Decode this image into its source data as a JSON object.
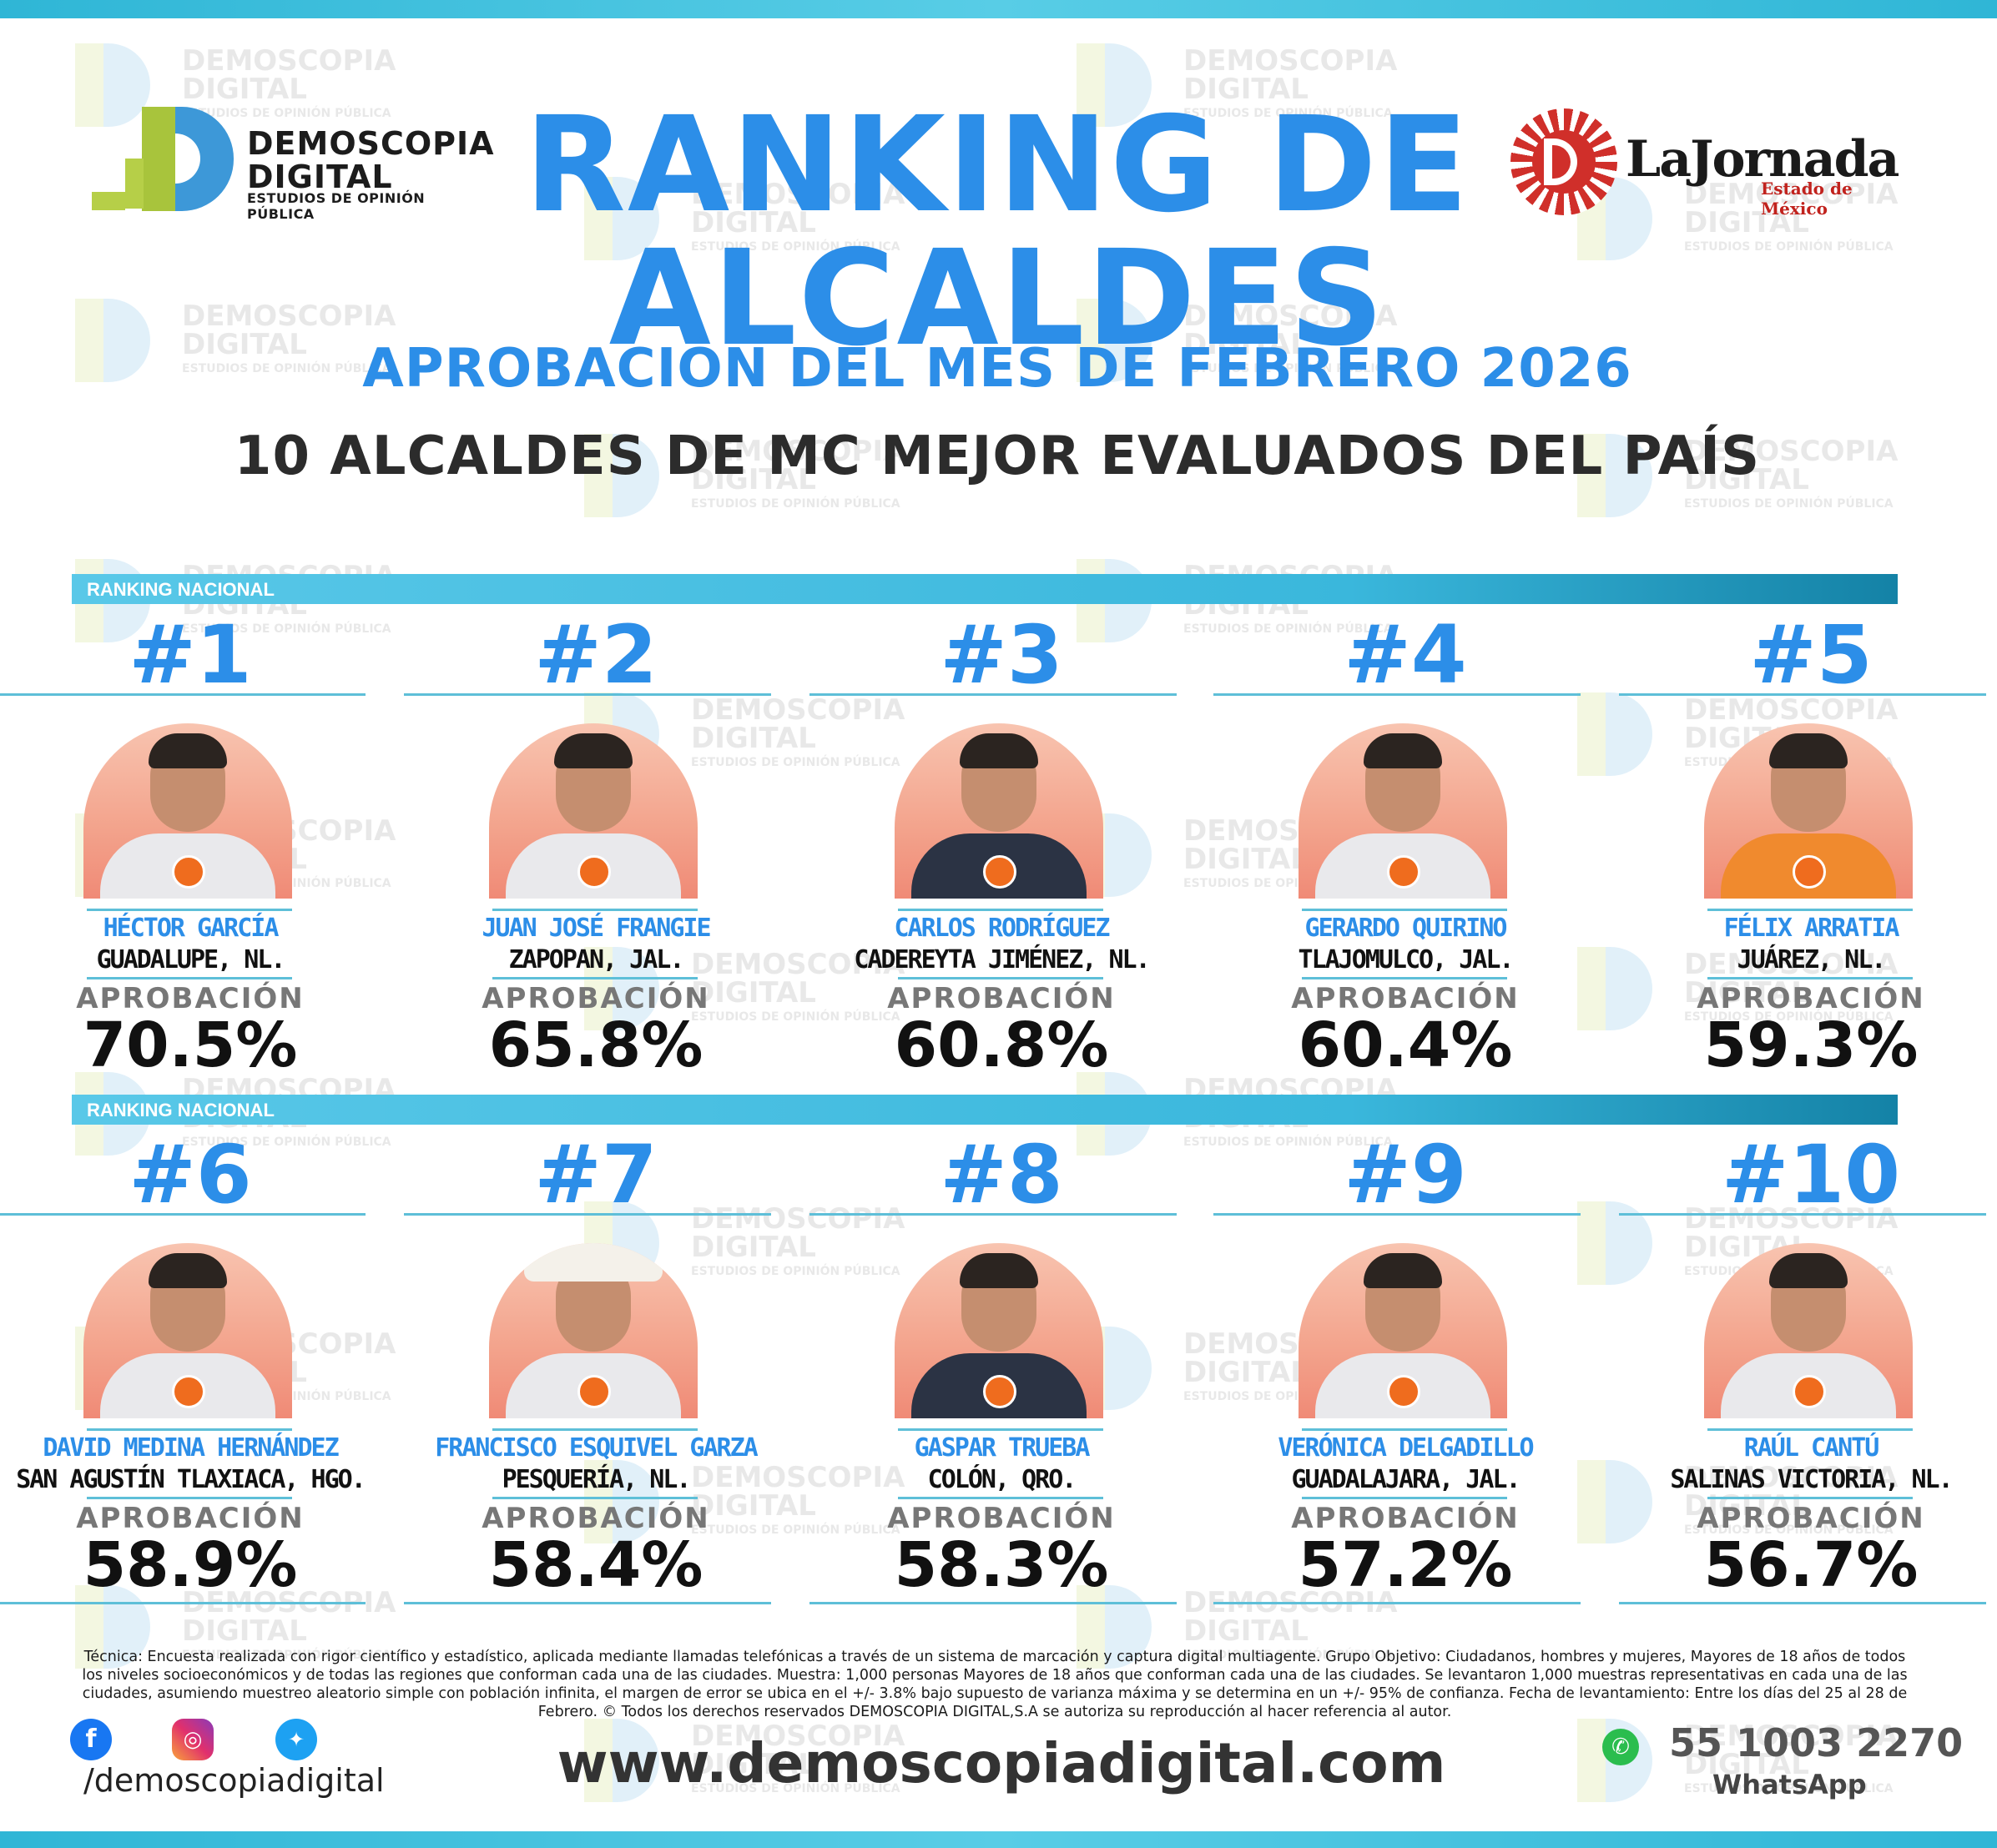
{
  "brand": {
    "name_line1": "DEMOSCOPIA",
    "name_line2": "DIGITAL",
    "tagline": "ESTUDIOS DE OPINIÓN PÚBLICA",
    "partner_name": "LaJornada",
    "partner_sub": "Estado de México"
  },
  "header": {
    "title_line1": "RANKING DE",
    "title_line2": "ALCALDES",
    "subtitle": "APROBACIÓN DEL MES DE FEBRERO 2026",
    "headline": "10 ALCALDES DE MC MEJOR EVALUADOS DEL PAÍS"
  },
  "section_label": "RANKING NACIONAL",
  "approval_label": "APROBACIÓN",
  "mayors": [
    {
      "rank": "#1",
      "name": "HÉCTOR GARCÍA",
      "place": "GUADALUPE, NL.",
      "approval": "70.5%"
    },
    {
      "rank": "#2",
      "name": "JUAN JOSÉ FRANGIE",
      "place": "ZAPOPAN, JAL.",
      "approval": "65.8%"
    },
    {
      "rank": "#3",
      "name": "CARLOS RODRÍGUEZ",
      "place": "CADEREYTA JIMÉNEZ, NL.",
      "approval": "60.8%"
    },
    {
      "rank": "#4",
      "name": "GERARDO QUIRINO",
      "place": "TLAJOMULCO, JAL.",
      "approval": "60.4%"
    },
    {
      "rank": "#5",
      "name": "FÉLIX ARRATIA",
      "place": "JUÁREZ, NL.",
      "approval": "59.3%"
    },
    {
      "rank": "#6",
      "name": "DAVID MEDINA HERNÁNDEZ",
      "place": "SAN AGUSTÍN TLAXIACA, HGO.",
      "approval": "58.9%"
    },
    {
      "rank": "#7",
      "name": "FRANCISCO ESQUIVEL GARZA",
      "place": "PESQUERÍA, NL.",
      "approval": "58.4%"
    },
    {
      "rank": "#8",
      "name": "GASPAR TRUEBA",
      "place": "COLÓN, QRO.",
      "approval": "58.3%"
    },
    {
      "rank": "#9",
      "name": "VERÓNICA DELGADILLO",
      "place": "GUADALAJARA, JAL.",
      "approval": "57.2%"
    },
    {
      "rank": "#10",
      "name": "RAÚL CANTÚ",
      "place": "SALINAS VICTORIA, NL.",
      "approval": "56.7%"
    }
  ],
  "footer": {
    "methodology": "Técnica: Encuesta realizada con rigor científico y estadístico, aplicada mediante llamadas telefónicas a través de un sistema de marcación y captura digital multiagente. Grupo Objetivo: Ciudadanos, hombres y mujeres, Mayores de 18 años de todos los niveles socioeconómicos y de todas las regiones que conforman cada una de las ciudades. Muestra: 1,000 personas Mayores de 18 años que conforman cada una de las ciudades. Se levantaron 1,000 muestras representativas en cada una de las ciudades, asumiendo muestreo aleatorio simple con población infinita, el margen de error se ubica en el +/- 3.8% bajo supuesto de varianza máxima y se determina en un +/- 95% de confianza. Fecha de levantamiento: Entre los días del 25 al 28 de Febrero. © Todos los derechos reservados DEMOSCOPIA DIGITAL,S.A se autoriza su reproducción al hacer referencia al autor.",
    "social_handle": "/demoscopiadigital",
    "website": "www.demoscopiadigital.com",
    "phone": "55 1003 2270",
    "whatsapp_label": "WhatsApp"
  },
  "icons": [
    "facebook-icon",
    "instagram-icon",
    "twitter-icon",
    "whatsapp-icon"
  ],
  "colors": {
    "accent_blue": "#2c8ee8",
    "bar_cyan": "#3ab7dc",
    "photo_peach": "#f3a38c",
    "mc_orange": "#ef6c1e"
  }
}
